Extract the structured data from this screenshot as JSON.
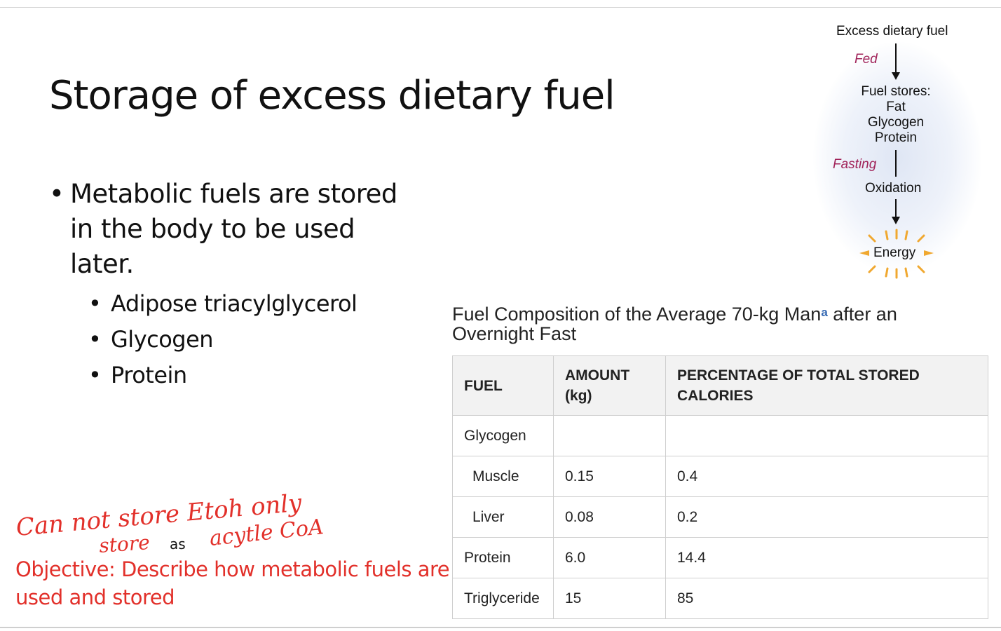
{
  "slide": {
    "title": "Storage of excess dietary fuel",
    "bullets": {
      "main": "Metabolic fuels are stored in the body to be used later.",
      "subs": [
        "Adipose triacylglycerol",
        "Glycogen",
        "Protein"
      ]
    },
    "objective": "Objective: Describe how metabolic fuels are used and stored",
    "handwritten_note": {
      "line1": "Can not store Etoh only",
      "line2_left": "store",
      "line2_mid": "as",
      "line2_right": "acytle CoA",
      "color": "#e2302a"
    }
  },
  "diagram": {
    "top_label": "Excess dietary fuel",
    "fed_label": "Fed",
    "stores_title": "Fuel stores:",
    "stores_items": [
      "Fat",
      "Glycogen",
      "Protein"
    ],
    "fasting_label": "Fasting",
    "oxidation_label": "Oxidation",
    "energy_label": "Energy",
    "colors": {
      "state_label": "#a1245a",
      "energy_rays": "#f0a830"
    }
  },
  "table": {
    "title": "Fuel Composition of the Average 70-kg Man",
    "title_sup": "a",
    "title_tail": " after an Overnight Fast",
    "headers": [
      "FUEL",
      "AMOUNT (kg)",
      "PERCENTAGE OF TOTAL STORED CALORIES"
    ],
    "rows": [
      {
        "fuel": "Glycogen",
        "amount": "",
        "percent": ""
      },
      {
        "fuel": "Muscle",
        "amount": "0.15",
        "percent": "0.4"
      },
      {
        "fuel": "Liver",
        "amount": "0.08",
        "percent": "0.2"
      },
      {
        "fuel": "Protein",
        "amount": "6.0",
        "percent": "14.4"
      },
      {
        "fuel": "Triglyceride",
        "amount": "15",
        "percent": "85"
      }
    ]
  }
}
